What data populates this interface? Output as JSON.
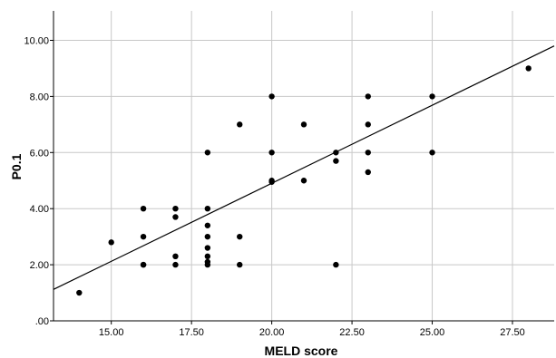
{
  "chart_data": {
    "type": "scatter",
    "xlabel": "MELD score",
    "ylabel": "P0.1",
    "xlim": [
      13.2,
      28.8
    ],
    "ylim": [
      0,
      11.05
    ],
    "xticks": [
      15,
      17.5,
      20,
      22.5,
      25,
      27.5
    ],
    "xtick_labels": [
      "15.00",
      "17.50",
      "20.00",
      "22.50",
      "25.00",
      "27.50"
    ],
    "yticks": [
      0,
      2,
      4,
      6,
      8,
      10
    ],
    "ytick_labels": [
      ".00",
      "2.00",
      "4.00",
      "6.00",
      "8.00",
      "10.00"
    ],
    "grid": true,
    "marker_color": "#000000",
    "line_color": "#000000",
    "points": [
      {
        "x": 14,
        "y": 1.0
      },
      {
        "x": 15,
        "y": 2.8
      },
      {
        "x": 16,
        "y": 4.0
      },
      {
        "x": 16,
        "y": 3.0
      },
      {
        "x": 16,
        "y": 2.0
      },
      {
        "x": 16,
        "y": 2.0
      },
      {
        "x": 17,
        "y": 4.0
      },
      {
        "x": 17,
        "y": 3.7
      },
      {
        "x": 17,
        "y": 2.3
      },
      {
        "x": 17,
        "y": 2.0
      },
      {
        "x": 18,
        "y": 6.0
      },
      {
        "x": 18,
        "y": 4.0
      },
      {
        "x": 18,
        "y": 3.4
      },
      {
        "x": 18,
        "y": 3.0
      },
      {
        "x": 18,
        "y": 2.6
      },
      {
        "x": 18,
        "y": 2.3
      },
      {
        "x": 18,
        "y": 2.1
      },
      {
        "x": 18,
        "y": 2.0
      },
      {
        "x": 19,
        "y": 7.0
      },
      {
        "x": 19,
        "y": 3.0
      },
      {
        "x": 19,
        "y": 2.0
      },
      {
        "x": 20,
        "y": 8.0
      },
      {
        "x": 20,
        "y": 6.0
      },
      {
        "x": 20,
        "y": 5.0
      },
      {
        "x": 20,
        "y": 4.95
      },
      {
        "x": 21,
        "y": 7.0
      },
      {
        "x": 21,
        "y": 5.0
      },
      {
        "x": 22,
        "y": 6.0
      },
      {
        "x": 22,
        "y": 5.7
      },
      {
        "x": 22,
        "y": 2.0
      },
      {
        "x": 23,
        "y": 8.0
      },
      {
        "x": 23,
        "y": 7.0
      },
      {
        "x": 23,
        "y": 6.0
      },
      {
        "x": 23,
        "y": 5.3
      },
      {
        "x": 25,
        "y": 8.0
      },
      {
        "x": 25,
        "y": 6.0
      },
      {
        "x": 28,
        "y": 9.0
      }
    ],
    "fit_line": {
      "x": [
        13.2,
        28.8
      ],
      "y": [
        1.12,
        9.8
      ]
    }
  }
}
